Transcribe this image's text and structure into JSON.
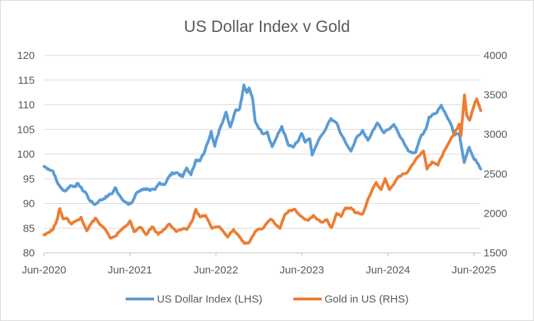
{
  "chart_data": {
    "type": "line",
    "title": "US Dollar Index v Gold",
    "x_tick_labels": [
      "Jun-2020",
      "Jun-2021",
      "Jun-2022",
      "Jun-2023",
      "Jun-2024",
      "Jun-2025"
    ],
    "xlim": [
      "2020-06-01",
      "2025-06-30"
    ],
    "y_left": {
      "lim": [
        80,
        120
      ],
      "ticks": [
        "80",
        "85",
        "90",
        "95",
        "100",
        "105",
        "110",
        "115",
        "120"
      ]
    },
    "y_right": {
      "lim": [
        1500,
        4000
      ],
      "ticks": [
        "1500",
        "2000",
        "2500",
        "3000",
        "3500",
        "4000"
      ]
    },
    "grid": true,
    "legend_position": "bottom",
    "series": [
      {
        "name": "US Dollar Index (LHS)",
        "axis": "left",
        "color": "#5b9bd5",
        "points": [
          [
            "2020-06-01",
            97.5
          ],
          [
            "2020-06-20",
            97.0
          ],
          [
            "2020-07-10",
            96.5
          ],
          [
            "2020-07-25",
            94.5
          ],
          [
            "2020-08-10",
            93.2
          ],
          [
            "2020-08-30",
            92.5
          ],
          [
            "2020-09-20",
            93.6
          ],
          [
            "2020-10-10",
            93.5
          ],
          [
            "2020-10-25",
            94.0
          ],
          [
            "2020-11-10",
            92.8
          ],
          [
            "2020-11-25",
            92.2
          ],
          [
            "2020-12-15",
            90.4
          ],
          [
            "2021-01-05",
            89.8
          ],
          [
            "2021-01-20",
            90.5
          ],
          [
            "2021-02-10",
            91.0
          ],
          [
            "2021-03-01",
            91.6
          ],
          [
            "2021-03-20",
            92.2
          ],
          [
            "2021-03-31",
            93.2
          ],
          [
            "2021-04-15",
            91.8
          ],
          [
            "2021-05-10",
            90.4
          ],
          [
            "2021-05-25",
            89.8
          ],
          [
            "2021-06-10",
            90.2
          ],
          [
            "2021-06-30",
            92.2
          ],
          [
            "2021-07-20",
            92.8
          ],
          [
            "2021-08-10",
            93.0
          ],
          [
            "2021-08-25",
            92.6
          ],
          [
            "2021-09-15",
            92.8
          ],
          [
            "2021-10-05",
            94.2
          ],
          [
            "2021-10-25",
            93.8
          ],
          [
            "2021-11-15",
            95.5
          ],
          [
            "2021-11-30",
            96.2
          ],
          [
            "2021-12-20",
            96.2
          ],
          [
            "2022-01-10",
            95.4
          ],
          [
            "2022-01-28",
            97.2
          ],
          [
            "2022-02-15",
            95.8
          ],
          [
            "2022-03-08",
            98.8
          ],
          [
            "2022-03-25",
            98.6
          ],
          [
            "2022-04-15",
            100.6
          ],
          [
            "2022-05-12",
            104.6
          ],
          [
            "2022-05-27",
            101.6
          ],
          [
            "2022-06-15",
            104.8
          ],
          [
            "2022-07-14",
            108.5
          ],
          [
            "2022-08-01",
            105.5
          ],
          [
            "2022-08-25",
            109.0
          ],
          [
            "2022-09-10",
            109.2
          ],
          [
            "2022-09-28",
            114.0
          ],
          [
            "2022-10-10",
            112.5
          ],
          [
            "2022-10-20",
            113.4
          ],
          [
            "2022-11-04",
            111.2
          ],
          [
            "2022-11-15",
            106.6
          ],
          [
            "2022-12-15",
            104.2
          ],
          [
            "2023-01-05",
            104.5
          ],
          [
            "2023-01-26",
            101.5
          ],
          [
            "2023-02-15",
            103.5
          ],
          [
            "2023-03-08",
            105.6
          ],
          [
            "2023-04-05",
            101.8
          ],
          [
            "2023-04-25",
            101.4
          ],
          [
            "2023-05-15",
            102.5
          ],
          [
            "2023-05-31",
            104.2
          ],
          [
            "2023-06-15",
            102.4
          ],
          [
            "2023-07-05",
            103.1
          ],
          [
            "2023-07-15",
            99.8
          ],
          [
            "2023-08-10",
            102.7
          ],
          [
            "2023-09-05",
            104.6
          ],
          [
            "2023-10-03",
            107.2
          ],
          [
            "2023-10-25",
            106.4
          ],
          [
            "2023-11-15",
            104.0
          ],
          [
            "2023-12-27",
            100.6
          ],
          [
            "2024-01-15",
            102.9
          ],
          [
            "2024-02-14",
            104.8
          ],
          [
            "2024-03-08",
            102.8
          ],
          [
            "2024-04-16",
            106.3
          ],
          [
            "2024-05-15",
            104.3
          ],
          [
            "2024-06-26",
            106.0
          ],
          [
            "2024-07-15",
            104.3
          ],
          [
            "2024-08-05",
            102.6
          ],
          [
            "2024-08-27",
            100.6
          ],
          [
            "2024-09-27",
            100.4
          ],
          [
            "2024-10-15",
            103.2
          ],
          [
            "2024-11-10",
            105.2
          ],
          [
            "2024-11-22",
            107.5
          ],
          [
            "2024-12-20",
            108.2
          ],
          [
            "2025-01-13",
            109.9
          ],
          [
            "2025-02-01",
            108.1
          ],
          [
            "2025-02-20",
            106.4
          ],
          [
            "2025-03-10",
            103.8
          ],
          [
            "2025-03-31",
            104.2
          ],
          [
            "2025-04-21",
            98.3
          ],
          [
            "2025-05-12",
            101.4
          ],
          [
            "2025-05-30",
            99.3
          ],
          [
            "2025-06-15",
            98.2
          ],
          [
            "2025-06-30",
            97.0
          ]
        ]
      },
      {
        "name": "Gold in US (RHS)",
        "axis": "right",
        "color": "#ed7d31",
        "points": [
          [
            "2020-06-01",
            1730
          ],
          [
            "2020-06-20",
            1760
          ],
          [
            "2020-07-10",
            1800
          ],
          [
            "2020-07-27",
            1930
          ],
          [
            "2020-08-07",
            2060
          ],
          [
            "2020-08-20",
            1935
          ],
          [
            "2020-09-05",
            1940
          ],
          [
            "2020-09-25",
            1865
          ],
          [
            "2020-10-15",
            1905
          ],
          [
            "2020-11-05",
            1950
          ],
          [
            "2020-11-30",
            1780
          ],
          [
            "2020-12-20",
            1880
          ],
          [
            "2021-01-06",
            1940
          ],
          [
            "2021-01-25",
            1855
          ],
          [
            "2021-02-15",
            1800
          ],
          [
            "2021-03-08",
            1690
          ],
          [
            "2021-03-31",
            1710
          ],
          [
            "2021-04-20",
            1780
          ],
          [
            "2021-05-15",
            1840
          ],
          [
            "2021-06-01",
            1905
          ],
          [
            "2021-06-18",
            1770
          ],
          [
            "2021-07-15",
            1825
          ],
          [
            "2021-08-09",
            1730
          ],
          [
            "2021-09-03",
            1830
          ],
          [
            "2021-09-29",
            1735
          ],
          [
            "2021-10-20",
            1790
          ],
          [
            "2021-11-16",
            1865
          ],
          [
            "2021-12-15",
            1770
          ],
          [
            "2022-01-10",
            1800
          ],
          [
            "2022-01-28",
            1795
          ],
          [
            "2022-02-20",
            1900
          ],
          [
            "2022-03-08",
            2050
          ],
          [
            "2022-03-25",
            1955
          ],
          [
            "2022-04-18",
            1975
          ],
          [
            "2022-05-16",
            1810
          ],
          [
            "2022-06-15",
            1830
          ],
          [
            "2022-07-21",
            1700
          ],
          [
            "2022-08-15",
            1795
          ],
          [
            "2022-09-15",
            1680
          ],
          [
            "2022-09-28",
            1625
          ],
          [
            "2022-10-20",
            1630
          ],
          [
            "2022-11-15",
            1770
          ],
          [
            "2022-12-20",
            1815
          ],
          [
            "2023-01-20",
            1925
          ],
          [
            "2023-02-28",
            1810
          ],
          [
            "2023-03-20",
            1980
          ],
          [
            "2023-04-13",
            2040
          ],
          [
            "2023-05-03",
            2050
          ],
          [
            "2023-05-31",
            1960
          ],
          [
            "2023-06-29",
            1910
          ],
          [
            "2023-07-20",
            1975
          ],
          [
            "2023-08-21",
            1890
          ],
          [
            "2023-09-15",
            1920
          ],
          [
            "2023-10-05",
            1820
          ],
          [
            "2023-10-27",
            2000
          ],
          [
            "2023-11-15",
            1960
          ],
          [
            "2023-12-04",
            2070
          ],
          [
            "2023-12-27",
            2070
          ],
          [
            "2024-01-17",
            2005
          ],
          [
            "2024-02-14",
            1990
          ],
          [
            "2024-03-08",
            2180
          ],
          [
            "2024-04-12",
            2390
          ],
          [
            "2024-05-03",
            2300
          ],
          [
            "2024-05-20",
            2440
          ],
          [
            "2024-06-07",
            2300
          ],
          [
            "2024-07-17",
            2470
          ],
          [
            "2024-08-20",
            2510
          ],
          [
            "2024-09-26",
            2680
          ],
          [
            "2024-10-30",
            2790
          ],
          [
            "2024-11-14",
            2560
          ],
          [
            "2024-12-05",
            2650
          ],
          [
            "2024-12-30",
            2610
          ],
          [
            "2025-01-24",
            2780
          ],
          [
            "2025-02-24",
            2950
          ],
          [
            "2025-03-31",
            3130
          ],
          [
            "2025-04-07",
            2980
          ],
          [
            "2025-04-22",
            3500
          ],
          [
            "2025-05-01",
            3240
          ],
          [
            "2025-05-14",
            3180
          ],
          [
            "2025-06-05",
            3400
          ],
          [
            "2025-06-13",
            3450
          ],
          [
            "2025-06-30",
            3300
          ]
        ]
      }
    ]
  }
}
